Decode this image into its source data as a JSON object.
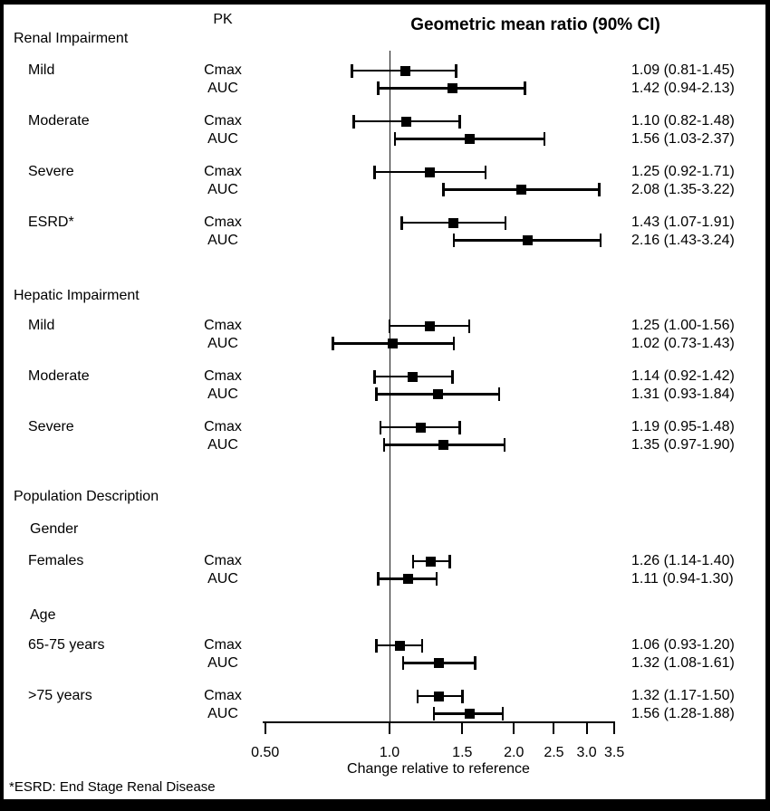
{
  "title": "Geometric mean ratio (90% CI)",
  "pk_header": "PK",
  "xlabel": "Change relative to reference",
  "footnote": "*ESRD: End Stage Renal Disease",
  "colors": {
    "background": "#ffffff",
    "frame": "#000000",
    "marker": "#000000",
    "error_bar": "#000000",
    "reference_line": "#1a1a1a"
  },
  "chart_data": {
    "type": "forest",
    "title": "Geometric mean ratio (90% CI)",
    "xlabel": "Change relative to reference",
    "xscale": "log",
    "xlim": [
      0.5,
      3.5
    ],
    "x_ticks": [
      0.5,
      1.0,
      1.5,
      2.0,
      2.5,
      3.0,
      3.5
    ],
    "x_tick_labels": [
      "0.50",
      "1.0",
      "1.5",
      "2.0",
      "2.5",
      "3.0",
      "3.5"
    ],
    "reference_line": 1.0,
    "rows": [
      {
        "kind": "section",
        "label": "Renal Impairment"
      },
      {
        "kind": "group",
        "label": "Mild",
        "entries": [
          {
            "pk": "Cmax",
            "est": 1.09,
            "lo": 0.81,
            "hi": 1.45,
            "text": "1.09 (0.81-1.45)"
          },
          {
            "pk": "AUC",
            "est": 1.42,
            "lo": 0.94,
            "hi": 2.13,
            "text": "1.42 (0.94-2.13)"
          }
        ]
      },
      {
        "kind": "group",
        "label": "Moderate",
        "entries": [
          {
            "pk": "Cmax",
            "est": 1.1,
            "lo": 0.82,
            "hi": 1.48,
            "text": "1.10 (0.82-1.48)"
          },
          {
            "pk": "AUC",
            "est": 1.56,
            "lo": 1.03,
            "hi": 2.37,
            "text": "1.56 (1.03-2.37)"
          }
        ]
      },
      {
        "kind": "group",
        "label": "Severe",
        "entries": [
          {
            "pk": "Cmax",
            "est": 1.25,
            "lo": 0.92,
            "hi": 1.71,
            "text": "1.25 (0.92-1.71)"
          },
          {
            "pk": "AUC",
            "est": 2.08,
            "lo": 1.35,
            "hi": 3.22,
            "text": "2.08 (1.35-3.22)"
          }
        ]
      },
      {
        "kind": "group",
        "label": "ESRD*",
        "entries": [
          {
            "pk": "Cmax",
            "est": 1.43,
            "lo": 1.07,
            "hi": 1.91,
            "text": "1.43 (1.07-1.91)"
          },
          {
            "pk": "AUC",
            "est": 2.16,
            "lo": 1.43,
            "hi": 3.24,
            "text": "2.16 (1.43-3.24)"
          }
        ]
      },
      {
        "kind": "section",
        "label": "Hepatic Impairment"
      },
      {
        "kind": "group",
        "label": "Mild",
        "entries": [
          {
            "pk": "Cmax",
            "est": 1.25,
            "lo": 1.0,
            "hi": 1.56,
            "text": "1.25 (1.00-1.56)"
          },
          {
            "pk": "AUC",
            "est": 1.02,
            "lo": 0.73,
            "hi": 1.43,
            "text": "1.02 (0.73-1.43)"
          }
        ]
      },
      {
        "kind": "group",
        "label": "Moderate",
        "entries": [
          {
            "pk": "Cmax",
            "est": 1.14,
            "lo": 0.92,
            "hi": 1.42,
            "text": "1.14 (0.92-1.42)"
          },
          {
            "pk": "AUC",
            "est": 1.31,
            "lo": 0.93,
            "hi": 1.84,
            "text": "1.31 (0.93-1.84)"
          }
        ]
      },
      {
        "kind": "group",
        "label": "Severe",
        "entries": [
          {
            "pk": "Cmax",
            "est": 1.19,
            "lo": 0.95,
            "hi": 1.48,
            "text": "1.19 (0.95-1.48)"
          },
          {
            "pk": "AUC",
            "est": 1.35,
            "lo": 0.97,
            "hi": 1.9,
            "text": "1.35 (0.97-1.90)"
          }
        ]
      },
      {
        "kind": "section",
        "label": "Population Description"
      },
      {
        "kind": "subsection",
        "label": "Gender"
      },
      {
        "kind": "group",
        "label": "Females",
        "entries": [
          {
            "pk": "Cmax",
            "est": 1.26,
            "lo": 1.14,
            "hi": 1.4,
            "text": "1.26 (1.14-1.40)"
          },
          {
            "pk": "AUC",
            "est": 1.11,
            "lo": 0.94,
            "hi": 1.3,
            "text": "1.11 (0.94-1.30)"
          }
        ]
      },
      {
        "kind": "subsection",
        "label": "Age"
      },
      {
        "kind": "group",
        "label": "65-75 years",
        "entries": [
          {
            "pk": "Cmax",
            "est": 1.06,
            "lo": 0.93,
            "hi": 1.2,
            "text": "1.06 (0.93-1.20)"
          },
          {
            "pk": "AUC",
            "est": 1.32,
            "lo": 1.08,
            "hi": 1.61,
            "text": "1.32 (1.08-1.61)"
          }
        ]
      },
      {
        "kind": "group",
        "label": ">75 years",
        "entries": [
          {
            "pk": "Cmax",
            "est": 1.32,
            "lo": 1.17,
            "hi": 1.5,
            "text": "1.32 (1.17-1.50)"
          },
          {
            "pk": "AUC",
            "est": 1.56,
            "lo": 1.28,
            "hi": 1.88,
            "text": "1.56 (1.28-1.88)"
          }
        ]
      }
    ]
  }
}
